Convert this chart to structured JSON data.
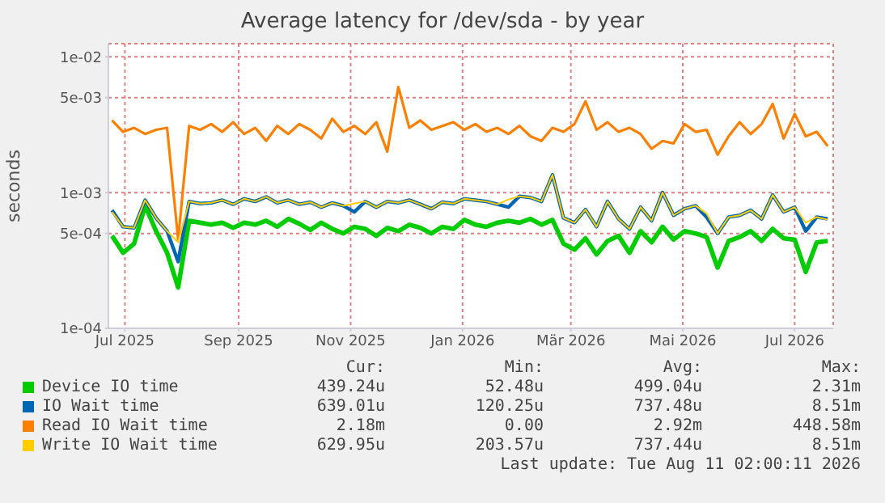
{
  "chart_data": {
    "type": "line",
    "title": "Average latency for /dev/sda - by year",
    "ylabel": "seconds",
    "x": [
      "2025-06-24",
      "2025-06-30",
      "2025-07-06",
      "2025-07-12",
      "2025-07-18",
      "2025-07-24",
      "2025-07-30",
      "2025-08-05",
      "2025-08-11",
      "2025-08-17",
      "2025-08-23",
      "2025-08-29",
      "2025-09-04",
      "2025-09-10",
      "2025-09-16",
      "2025-09-22",
      "2025-09-28",
      "2025-10-04",
      "2025-10-10",
      "2025-10-16",
      "2025-10-22",
      "2025-10-28",
      "2025-11-03",
      "2025-11-09",
      "2025-11-15",
      "2025-11-21",
      "2025-11-27",
      "2025-12-03",
      "2025-12-09",
      "2025-12-15",
      "2025-12-21",
      "2025-12-27",
      "2026-01-02",
      "2026-01-08",
      "2026-01-14",
      "2026-01-20",
      "2026-01-26",
      "2026-02-01",
      "2026-02-07",
      "2026-02-13",
      "2026-02-19",
      "2026-02-25",
      "2026-03-03",
      "2026-03-09",
      "2026-03-15",
      "2026-03-21",
      "2026-03-27",
      "2026-04-02",
      "2026-04-08",
      "2026-04-14",
      "2026-04-20",
      "2026-04-26",
      "2026-05-02",
      "2026-05-08",
      "2026-05-14",
      "2026-05-20",
      "2026-05-26",
      "2026-06-01",
      "2026-06-07",
      "2026-06-13",
      "2026-06-19",
      "2026-06-25",
      "2026-07-01",
      "2026-07-07",
      "2026-07-13",
      "2026-07-19"
    ],
    "series": [
      {
        "name": "Device IO time",
        "color": "#00cc00",
        "values": [
          0.00048,
          0.00036,
          0.00042,
          0.0008,
          0.00052,
          0.00036,
          0.0002,
          0.00062,
          0.0006,
          0.00058,
          0.0006,
          0.00055,
          0.0006,
          0.00058,
          0.00062,
          0.00056,
          0.00064,
          0.00059,
          0.00053,
          0.0006,
          0.00054,
          0.0005,
          0.00056,
          0.00054,
          0.00048,
          0.00055,
          0.00052,
          0.00058,
          0.00055,
          0.0005,
          0.00056,
          0.00054,
          0.00063,
          0.00058,
          0.00056,
          0.0006,
          0.00062,
          0.0006,
          0.00064,
          0.00058,
          0.00063,
          0.00042,
          0.00038,
          0.00046,
          0.00035,
          0.00044,
          0.00048,
          0.00036,
          0.00052,
          0.00043,
          0.00056,
          0.00045,
          0.00052,
          0.0005,
          0.00047,
          0.00028,
          0.00044,
          0.00047,
          0.00052,
          0.00044,
          0.00054,
          0.00046,
          0.00045,
          0.00026,
          0.00043,
          0.00044
        ]
      },
      {
        "name": "IO Wait time",
        "color": "#0066b3",
        "values": [
          0.00074,
          0.00056,
          0.00055,
          0.00088,
          0.00065,
          0.00052,
          0.00031,
          0.00086,
          0.00083,
          0.00084,
          0.00088,
          0.00082,
          0.0009,
          0.00086,
          0.00093,
          0.00084,
          0.00088,
          0.00082,
          0.00085,
          0.00078,
          0.00084,
          0.0008,
          0.00072,
          0.00086,
          0.00078,
          0.00086,
          0.00084,
          0.00088,
          0.00082,
          0.00076,
          0.00085,
          0.00083,
          0.0009,
          0.00088,
          0.00086,
          0.00082,
          0.00078,
          0.00094,
          0.00092,
          0.00086,
          0.00135,
          0.00065,
          0.0006,
          0.00075,
          0.00056,
          0.00086,
          0.00064,
          0.00054,
          0.00078,
          0.00062,
          0.001,
          0.00068,
          0.00076,
          0.0008,
          0.00066,
          0.0005,
          0.00066,
          0.00068,
          0.00074,
          0.00064,
          0.00096,
          0.00072,
          0.00078,
          0.00052,
          0.00066,
          0.00064
        ]
      },
      {
        "name": "Read IO Wait time",
        "color": "#ff8000",
        "values": [
          0.0034,
          0.0028,
          0.003,
          0.0027,
          0.0029,
          0.003,
          0.00045,
          0.0031,
          0.0029,
          0.0032,
          0.0028,
          0.0033,
          0.0027,
          0.003,
          0.0024,
          0.0031,
          0.0027,
          0.0032,
          0.0029,
          0.0025,
          0.0035,
          0.0028,
          0.0031,
          0.0027,
          0.0033,
          0.002,
          0.006,
          0.003,
          0.0034,
          0.0029,
          0.0031,
          0.0033,
          0.0029,
          0.0032,
          0.0028,
          0.003,
          0.0027,
          0.0031,
          0.0026,
          0.0024,
          0.003,
          0.0028,
          0.0032,
          0.0047,
          0.0029,
          0.0033,
          0.0028,
          0.003,
          0.0027,
          0.0021,
          0.0024,
          0.0023,
          0.0032,
          0.0028,
          0.0029,
          0.0019,
          0.0026,
          0.0033,
          0.0027,
          0.0032,
          0.0045,
          0.0025,
          0.0038,
          0.0026,
          0.0028,
          0.0022
        ]
      },
      {
        "name": "Write IO Wait time",
        "color": "#ffcc00",
        "values": [
          0.00072,
          0.00056,
          0.00055,
          0.00088,
          0.00065,
          0.00052,
          0.00043,
          0.00086,
          0.00083,
          0.00084,
          0.00088,
          0.00082,
          0.0009,
          0.00086,
          0.00093,
          0.00084,
          0.00088,
          0.00082,
          0.00085,
          0.00078,
          0.00084,
          0.0008,
          0.00083,
          0.00086,
          0.00078,
          0.00086,
          0.00084,
          0.00088,
          0.00082,
          0.00076,
          0.00085,
          0.00083,
          0.0009,
          0.00088,
          0.00086,
          0.00082,
          0.00089,
          0.00094,
          0.00092,
          0.00086,
          0.00135,
          0.00065,
          0.0006,
          0.00075,
          0.00056,
          0.00086,
          0.00064,
          0.00054,
          0.00078,
          0.00062,
          0.001,
          0.00068,
          0.00076,
          0.0008,
          0.0007,
          0.0005,
          0.00066,
          0.00068,
          0.00074,
          0.00064,
          0.00096,
          0.00072,
          0.00078,
          0.0006,
          0.00066,
          0.00063
        ]
      }
    ],
    "log": "y",
    "ylim": [
      0.0001,
      0.0125
    ],
    "yticks": [
      {
        "value": 0.0001,
        "label": "1e-04"
      },
      {
        "value": 0.0005,
        "label": "5e-04"
      },
      {
        "value": 0.001,
        "label": "1e-03"
      },
      {
        "value": 0.005,
        "label": "5e-03"
      },
      {
        "value": 0.01,
        "label": "1e-02"
      }
    ],
    "xlim": [
      "2025-06-22",
      "2026-07-22"
    ],
    "xticks": [
      {
        "value": "2025-07-01",
        "label": "Jul 2025"
      },
      {
        "value": "2025-09-01",
        "label": "Sep 2025"
      },
      {
        "value": "2025-11-01",
        "label": "Nov 2025"
      },
      {
        "value": "2026-01-01",
        "label": "Jan 2026"
      },
      {
        "value": "2026-03-01",
        "label": "Mär 2026"
      },
      {
        "value": "2026-05-01",
        "label": "Mai 2026"
      },
      {
        "value": "2026-07-01",
        "label": "Jul 2026"
      }
    ],
    "grid": true,
    "legend": "bottom",
    "marker": "none",
    "line_style": "solid",
    "annotations": [
      "Cur:",
      "Min:",
      "Avg:",
      "Max:",
      "439.24u",
      "52.48u",
      "499.04u",
      "2.31m",
      "639.01u",
      "120.25u",
      "737.48u",
      "8.51m",
      "2.18m",
      "0.00",
      "2.92m",
      "448.58m",
      "629.95u",
      "203.57u",
      "737.44u",
      "8.51m",
      "Last update: Tue Aug 11 02:00:11 2026"
    ]
  }
}
